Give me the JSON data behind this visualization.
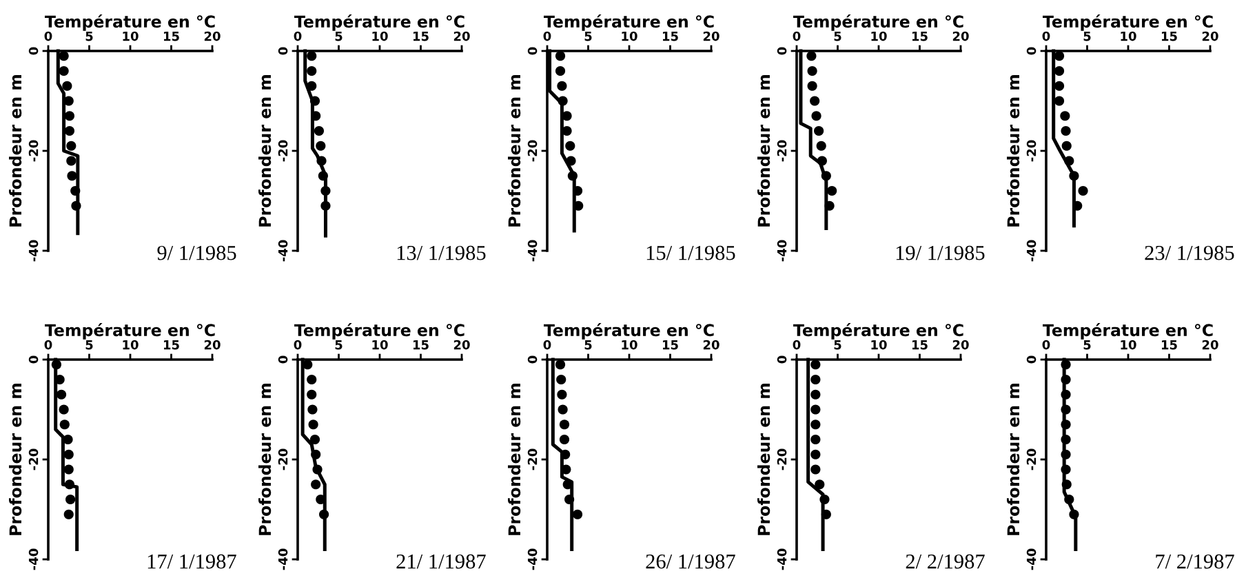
{
  "chart_data": [
    {
      "type": "line",
      "xlabel": "Température en °C",
      "ylabel": "Profondeur en m",
      "xlim": [
        0,
        20
      ],
      "xticks": [
        0,
        5,
        10,
        15,
        20
      ],
      "ylim": [
        -40,
        0
      ],
      "yticks": [
        0,
        -20,
        -40
      ],
      "annotations": [
        "9/ 1/1985"
      ],
      "series": [
        {
          "line_style": "solid",
          "color": "#000000",
          "x": [
            1.2,
            1.2,
            1.9,
            1.9,
            3.6,
            3.6
          ],
          "values": [
            0,
            -6.5,
            -8.5,
            -20,
            -21,
            -36.5
          ]
        },
        {
          "type": "scatter",
          "marker": "circle",
          "color": "#000000",
          "x": [
            1.9,
            1.9,
            2.3,
            2.5,
            2.6,
            2.6,
            2.8,
            2.8,
            2.9,
            3.3,
            3.4
          ],
          "values": [
            -1,
            -4,
            -7,
            -10,
            -13,
            -16,
            -19,
            -22,
            -25,
            -28,
            -31
          ]
        }
      ]
    },
    {
      "type": "line",
      "xlabel": "Température en °C",
      "ylabel": "Profondeur en m",
      "xlim": [
        0,
        20
      ],
      "xticks": [
        0,
        5,
        10,
        15,
        20
      ],
      "ylim": [
        -40,
        0
      ],
      "yticks": [
        0,
        -20,
        -40
      ],
      "annotations": [
        "13/ 1/1985"
      ],
      "series": [
        {
          "line_style": "solid",
          "color": "#000000",
          "x": [
            0.9,
            0.9,
            1.8,
            1.8,
            2.4,
            3.4,
            3.4
          ],
          "values": [
            0,
            -6,
            -10,
            -19.5,
            -21,
            -25,
            -37
          ]
        },
        {
          "type": "scatter",
          "marker": "circle",
          "color": "#000000",
          "x": [
            1.7,
            1.7,
            1.7,
            2.1,
            2.2,
            2.6,
            2.8,
            2.9,
            3.1,
            3.4,
            3.4
          ],
          "values": [
            -1,
            -4,
            -7,
            -10,
            -13,
            -16,
            -19,
            -22,
            -25,
            -28,
            -31
          ]
        }
      ]
    },
    {
      "type": "line",
      "xlabel": "Température en °C",
      "ylabel": "Profondeur en m",
      "xlim": [
        0,
        20
      ],
      "xticks": [
        0,
        5,
        10,
        15,
        20
      ],
      "ylim": [
        -40,
        0
      ],
      "yticks": [
        0,
        -20,
        -40
      ],
      "annotations": [
        "15/ 1/1985"
      ],
      "series": [
        {
          "line_style": "solid",
          "color": "#000000",
          "x": [
            0.3,
            0.3,
            1.8,
            1.8,
            3.3,
            3.3
          ],
          "values": [
            0,
            -8,
            -10.5,
            -20.5,
            -25,
            -36
          ]
        },
        {
          "type": "scatter",
          "marker": "circle",
          "color": "#000000",
          "x": [
            1.6,
            1.6,
            1.8,
            1.9,
            2.4,
            2.4,
            2.8,
            2.9,
            3.1,
            3.7,
            3.8
          ],
          "values": [
            -1,
            -4,
            -7,
            -10,
            -13,
            -16,
            -19,
            -22,
            -25,
            -28,
            -31
          ]
        }
      ]
    },
    {
      "type": "line",
      "xlabel": "Température en °C",
      "ylabel": "Profondeur en m",
      "xlim": [
        0,
        20
      ],
      "xticks": [
        0,
        5,
        10,
        15,
        20
      ],
      "ylim": [
        -40,
        0
      ],
      "yticks": [
        0,
        -20,
        -40
      ],
      "annotations": [
        "19/ 1/1985"
      ],
      "series": [
        {
          "line_style": "solid",
          "color": "#000000",
          "x": [
            0.5,
            0.5,
            1.7,
            1.7,
            2.9,
            3.6,
            3.6
          ],
          "values": [
            0,
            -14.5,
            -15.5,
            -21,
            -22.5,
            -26,
            -35.5
          ]
        },
        {
          "type": "scatter",
          "marker": "circle",
          "color": "#000000",
          "x": [
            1.8,
            1.9,
            1.9,
            2.2,
            2.4,
            2.7,
            3.0,
            3.1,
            3.6,
            4.3,
            4.0
          ],
          "values": [
            -1,
            -4,
            -7,
            -10,
            -13,
            -16,
            -19,
            -22,
            -25,
            -28,
            -31
          ]
        }
      ]
    },
    {
      "type": "line",
      "xlabel": "Température en °C",
      "ylabel": "Profondeur en m",
      "xlim": [
        0,
        20
      ],
      "xticks": [
        0,
        5,
        10,
        15,
        20
      ],
      "ylim": [
        -40,
        0
      ],
      "yticks": [
        0,
        -20,
        -40
      ],
      "annotations": [
        "23/ 1/1985"
      ],
      "series": [
        {
          "line_style": "solid",
          "color": "#000000",
          "x": [
            0.9,
            0.9,
            1.7,
            3.4,
            3.4
          ],
          "values": [
            0,
            -17.5,
            -20,
            -25,
            -35
          ]
        },
        {
          "type": "scatter",
          "marker": "circle",
          "color": "#000000",
          "x": [
            1.6,
            1.6,
            1.6,
            1.6,
            2.3,
            2.4,
            2.5,
            2.8,
            3.4,
            4.5,
            3.8
          ],
          "values": [
            -1,
            -4,
            -7,
            -10,
            -13,
            -16,
            -19,
            -22,
            -25,
            -28,
            -31
          ]
        }
      ]
    },
    {
      "type": "line",
      "xlabel": "Température en °C",
      "ylabel": "Profondeur en m",
      "xlim": [
        0,
        20
      ],
      "xticks": [
        0,
        5,
        10,
        15,
        20
      ],
      "ylim": [
        -40,
        0
      ],
      "yticks": [
        0,
        -20,
        -40
      ],
      "annotations": [
        "17/ 1/1987"
      ],
      "series": [
        {
          "line_style": "solid",
          "color": "#000000",
          "x": [
            0.9,
            0.9,
            1.8,
            1.8,
            3.5,
            3.5
          ],
          "values": [
            0,
            -14,
            -15.5,
            -25,
            -25.5,
            -38
          ]
        },
        {
          "type": "scatter",
          "marker": "circle",
          "color": "#000000",
          "x": [
            1.0,
            1.4,
            1.6,
            1.9,
            2.0,
            2.4,
            2.5,
            2.5,
            2.6,
            2.7,
            2.5
          ],
          "values": [
            -1,
            -4,
            -7,
            -10,
            -13,
            -16,
            -19,
            -22,
            -25,
            -28,
            -31
          ]
        }
      ]
    },
    {
      "type": "line",
      "xlabel": "Température en °C",
      "ylabel": "Profondeur en m",
      "xlim": [
        0,
        20
      ],
      "xticks": [
        0,
        5,
        10,
        15,
        20
      ],
      "ylim": [
        -40,
        0
      ],
      "yticks": [
        0,
        -20,
        -40
      ],
      "annotations": [
        "21/ 1/1987"
      ],
      "series": [
        {
          "line_style": "solid",
          "color": "#000000",
          "x": [
            0.6,
            0.6,
            1.7,
            2.2,
            3.3,
            3.3
          ],
          "values": [
            0,
            -15,
            -17,
            -21.5,
            -25,
            -38
          ]
        },
        {
          "type": "scatter",
          "marker": "circle",
          "color": "#000000",
          "x": [
            1.2,
            1.7,
            1.7,
            1.8,
            1.9,
            2.1,
            2.2,
            2.4,
            2.2,
            2.8,
            3.2
          ],
          "values": [
            -1,
            -4,
            -7,
            -10,
            -13,
            -16,
            -19,
            -22,
            -25,
            -28,
            -31
          ]
        }
      ]
    },
    {
      "type": "line",
      "xlabel": "Température en °C",
      "ylabel": "Profondeur en m",
      "xlim": [
        0,
        20
      ],
      "xticks": [
        0,
        5,
        10,
        15,
        20
      ],
      "ylim": [
        -40,
        0
      ],
      "yticks": [
        0,
        -20,
        -40
      ],
      "annotations": [
        "26/ 1/1987"
      ],
      "series": [
        {
          "line_style": "solid",
          "color": "#000000",
          "x": [
            0.7,
            0.7,
            1.8,
            1.8,
            3.0,
            3.0
          ],
          "values": [
            0,
            -17,
            -18.5,
            -23.5,
            -24.5,
            -38
          ]
        },
        {
          "type": "scatter",
          "marker": "circle",
          "color": "#000000",
          "x": [
            1.6,
            1.7,
            1.8,
            1.9,
            2.1,
            2.1,
            2.2,
            2.3,
            2.5,
            2.7,
            3.7
          ],
          "values": [
            -1,
            -4,
            -7,
            -10,
            -13,
            -16,
            -19,
            -22,
            -25,
            -28,
            -31
          ]
        }
      ]
    },
    {
      "type": "line",
      "xlabel": "Température en °C",
      "ylabel": "Profondeur en m",
      "xlim": [
        0,
        20
      ],
      "xticks": [
        0,
        5,
        10,
        15,
        20
      ],
      "ylim": [
        -40,
        0
      ],
      "yticks": [
        0,
        -20,
        -40
      ],
      "annotations": [
        "2/ 2/1987"
      ],
      "series": [
        {
          "line_style": "solid",
          "color": "#000000",
          "x": [
            1.4,
            1.4,
            3.2,
            3.2
          ],
          "values": [
            0,
            -24.5,
            -27,
            -38
          ]
        },
        {
          "type": "scatter",
          "marker": "circle",
          "color": "#000000",
          "x": [
            2.3,
            2.3,
            2.3,
            2.3,
            2.3,
            2.3,
            2.3,
            2.3,
            2.8,
            3.4,
            3.6
          ],
          "values": [
            -1,
            -4,
            -7,
            -10,
            -13,
            -16,
            -19,
            -22,
            -25,
            -28,
            -31
          ]
        }
      ]
    },
    {
      "type": "line",
      "xlabel": "Température en °C",
      "ylabel": "Profondeur en m",
      "xlim": [
        0,
        20
      ],
      "xticks": [
        0,
        5,
        10,
        15,
        20
      ],
      "ylim": [
        -40,
        0
      ],
      "yticks": [
        0,
        -20,
        -40
      ],
      "annotations": [
        "7/ 2/1987"
      ],
      "series": [
        {
          "line_style": "solid",
          "color": "#000000",
          "x": [
            2.2,
            2.2,
            3.6,
            3.6
          ],
          "values": [
            0,
            -26.5,
            -31.5,
            -38
          ]
        },
        {
          "type": "scatter",
          "marker": "circle",
          "color": "#000000",
          "x": [
            2.4,
            2.4,
            2.4,
            2.4,
            2.4,
            2.4,
            2.4,
            2.4,
            2.5,
            2.8,
            3.4
          ],
          "values": [
            -1,
            -4,
            -7,
            -10,
            -13,
            -16,
            -19,
            -22,
            -25,
            -28,
            -31
          ]
        }
      ]
    }
  ]
}
